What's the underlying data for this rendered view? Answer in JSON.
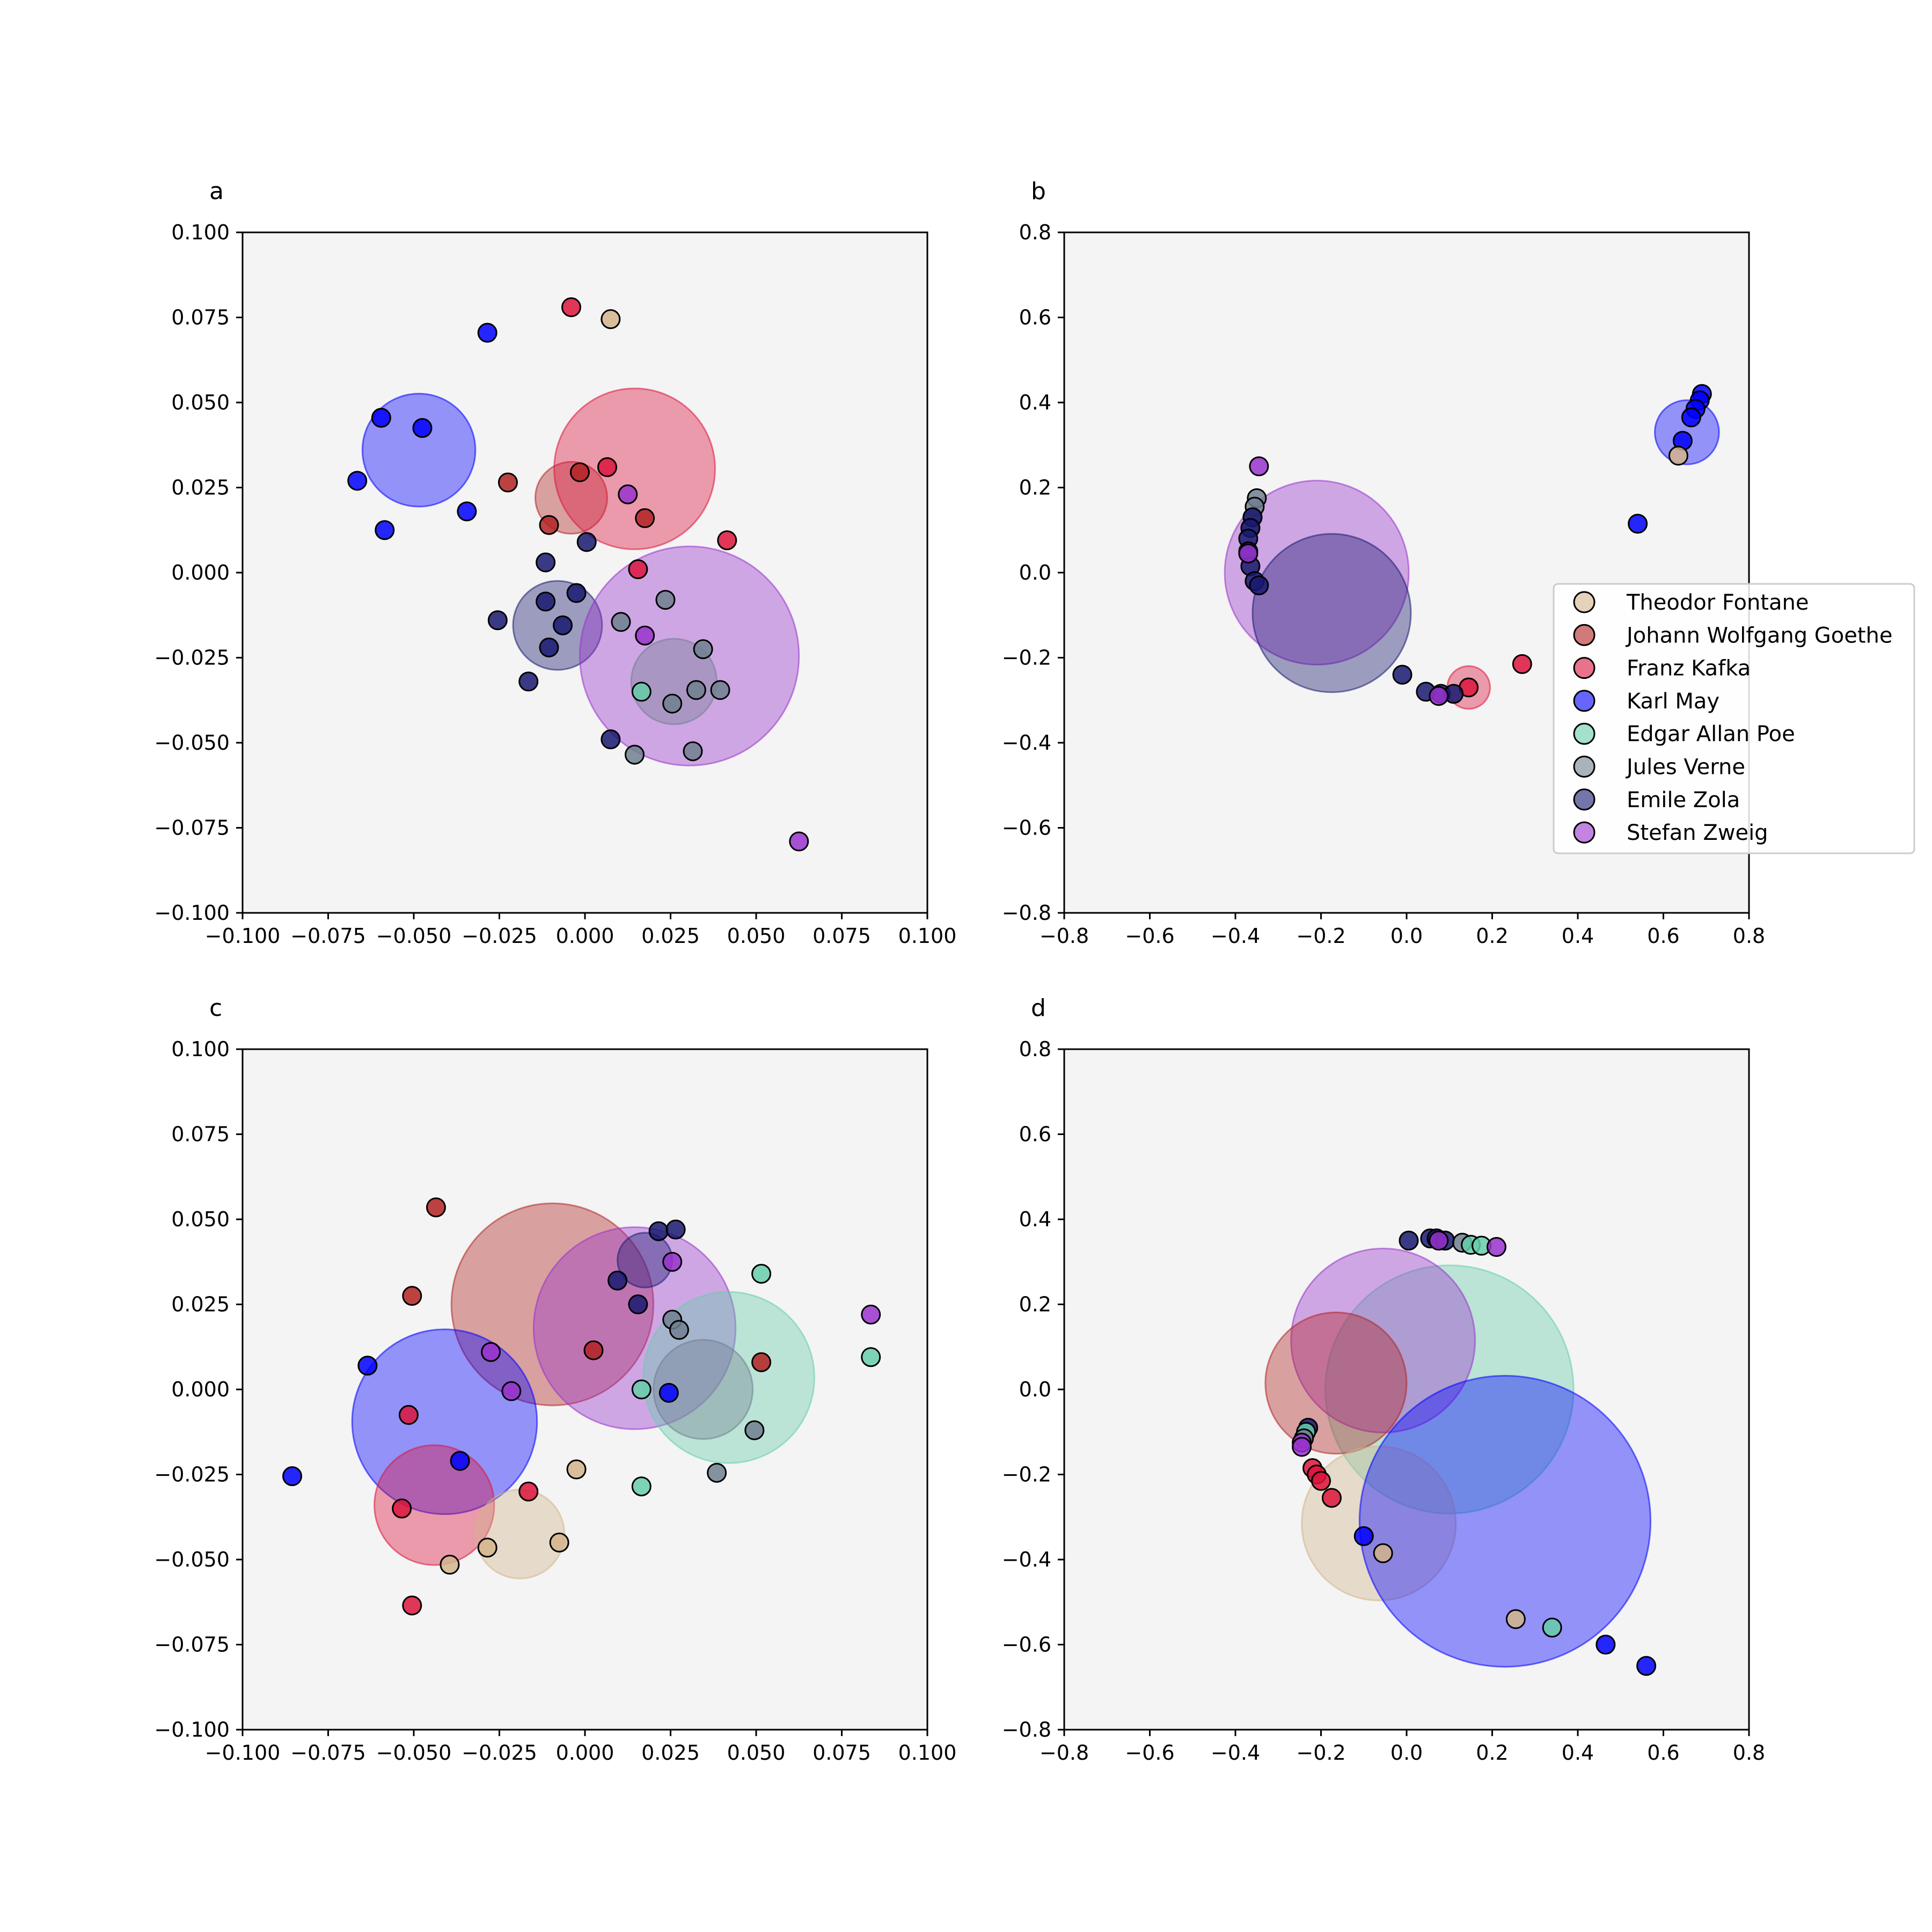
{
  "colors": {
    "Theodor Fontane": "#D2B48C",
    "Johann Wolfgang Goethe": "#B22222",
    "Franz Kafka": "#DC143C",
    "Karl May": "#0000FF",
    "Edgar Allan Poe": "#66CDAA",
    "Jules Verne": "#708090",
    "Emile Zola": "#191970",
    "Stefan Zweig": "#9932CC"
  },
  "legend": {
    "placement": "right of panel b",
    "entries": [
      "Theodor Fontane",
      "Johann Wolfgang Goethe",
      "Franz Kafka",
      "Karl May",
      "Edgar Allan Poe",
      "Jules Verne",
      "Emile Zola",
      "Stefan Zweig"
    ]
  },
  "chart_data": [
    {
      "panel": "a",
      "type": "scatter",
      "xlim": [
        -0.1,
        0.1
      ],
      "ylim": [
        -0.1,
        0.1
      ],
      "xticks": [
        "−0.100",
        "−0.075",
        "−0.050",
        "−0.025",
        "0.000",
        "0.025",
        "0.050",
        "0.075",
        "0.100"
      ],
      "yticks": [
        "−0.100",
        "−0.075",
        "−0.050",
        "−0.025",
        "0.000",
        "0.025",
        "0.050",
        "0.075",
        "0.100"
      ],
      "circles": [
        {
          "author": "Karl May",
          "x": -0.0485,
          "y": 0.036,
          "r": 0.0165
        },
        {
          "author": "Johann Wolfgang Goethe",
          "x": -0.004,
          "y": 0.022,
          "r": 0.0105
        },
        {
          "author": "Franz Kafka",
          "x": 0.0145,
          "y": 0.0305,
          "r": 0.0235
        },
        {
          "author": "Emile Zola",
          "x": -0.008,
          "y": -0.0155,
          "r": 0.013
        },
        {
          "author": "Stefan Zweig",
          "x": 0.0305,
          "y": -0.0245,
          "r": 0.032
        },
        {
          "author": "Jules Verne",
          "x": 0.026,
          "y": -0.032,
          "r": 0.0125
        }
      ],
      "points": [
        {
          "author": "Franz Kafka",
          "x": -0.004,
          "y": 0.078
        },
        {
          "author": "Theodor Fontane",
          "x": 0.0075,
          "y": 0.0745
        },
        {
          "author": "Karl May",
          "x": -0.0285,
          "y": 0.0705
        },
        {
          "author": "Karl May",
          "x": -0.0595,
          "y": 0.0455
        },
        {
          "author": "Karl May",
          "x": -0.0475,
          "y": 0.0425
        },
        {
          "author": "Karl May",
          "x": -0.0665,
          "y": 0.027
        },
        {
          "author": "Karl May",
          "x": -0.0345,
          "y": 0.018
        },
        {
          "author": "Karl May",
          "x": -0.0585,
          "y": 0.0125
        },
        {
          "author": "Johann Wolfgang Goethe",
          "x": -0.0225,
          "y": 0.0265
        },
        {
          "author": "Johann Wolfgang Goethe",
          "x": -0.0015,
          "y": 0.0295
        },
        {
          "author": "Johann Wolfgang Goethe",
          "x": -0.0105,
          "y": 0.014
        },
        {
          "author": "Johann Wolfgang Goethe",
          "x": 0.0175,
          "y": 0.016
        },
        {
          "author": "Franz Kafka",
          "x": 0.0065,
          "y": 0.031
        },
        {
          "author": "Franz Kafka",
          "x": 0.0415,
          "y": 0.0095
        },
        {
          "author": "Franz Kafka",
          "x": 0.0155,
          "y": 0.001
        },
        {
          "author": "Stefan Zweig",
          "x": 0.0125,
          "y": 0.023
        },
        {
          "author": "Emile Zola",
          "x": 0.0005,
          "y": 0.009
        },
        {
          "author": "Emile Zola",
          "x": -0.0115,
          "y": 0.003
        },
        {
          "author": "Emile Zola",
          "x": -0.0025,
          "y": -0.006
        },
        {
          "author": "Emile Zola",
          "x": -0.0115,
          "y": -0.0085
        },
        {
          "author": "Emile Zola",
          "x": -0.0255,
          "y": -0.014
        },
        {
          "author": "Emile Zola",
          "x": -0.0065,
          "y": -0.0155
        },
        {
          "author": "Emile Zola",
          "x": -0.0105,
          "y": -0.022
        },
        {
          "author": "Emile Zola",
          "x": -0.0165,
          "y": -0.032
        },
        {
          "author": "Emile Zola",
          "x": 0.0075,
          "y": -0.049
        },
        {
          "author": "Jules Verne",
          "x": 0.0105,
          "y": -0.0145
        },
        {
          "author": "Jules Verne",
          "x": 0.0235,
          "y": -0.008
        },
        {
          "author": "Jules Verne",
          "x": 0.0345,
          "y": -0.0225
        },
        {
          "author": "Jules Verne",
          "x": 0.0325,
          "y": -0.0345
        },
        {
          "author": "Jules Verne",
          "x": 0.0395,
          "y": -0.0345
        },
        {
          "author": "Jules Verne",
          "x": 0.0255,
          "y": -0.0385
        },
        {
          "author": "Jules Verne",
          "x": 0.0145,
          "y": -0.0535
        },
        {
          "author": "Jules Verne",
          "x": 0.0315,
          "y": -0.0525
        },
        {
          "author": "Stefan Zweig",
          "x": 0.0175,
          "y": -0.0185
        },
        {
          "author": "Edgar Allan Poe",
          "x": 0.0165,
          "y": -0.035
        },
        {
          "author": "Stefan Zweig",
          "x": 0.0625,
          "y": -0.079
        }
      ]
    },
    {
      "panel": "b",
      "type": "scatter",
      "xlim": [
        -0.8,
        0.8
      ],
      "ylim": [
        -0.8,
        0.8
      ],
      "xticks": [
        "−0.8",
        "−0.6",
        "−0.4",
        "−0.2",
        "0.0",
        "0.2",
        "0.4",
        "0.6",
        "0.8"
      ],
      "yticks": [
        "−0.8",
        "−0.6",
        "−0.4",
        "−0.2",
        "0.0",
        "0.2",
        "0.4",
        "0.6",
        "0.8"
      ],
      "circles": [
        {
          "author": "Karl May",
          "x": 0.655,
          "y": 0.33,
          "r": 0.075
        },
        {
          "author": "Stefan Zweig",
          "x": -0.21,
          "y": 0.0,
          "r": 0.215
        },
        {
          "author": "Emile Zola",
          "x": -0.175,
          "y": -0.095,
          "r": 0.185
        },
        {
          "author": "Franz Kafka",
          "x": 0.145,
          "y": -0.27,
          "r": 0.05
        }
      ],
      "points": [
        {
          "author": "Stefan Zweig",
          "x": -0.345,
          "y": 0.25
        },
        {
          "author": "Jules Verne",
          "x": -0.35,
          "y": 0.175
        },
        {
          "author": "Jules Verne",
          "x": -0.355,
          "y": 0.155
        },
        {
          "author": "Jules Verne",
          "x": -0.36,
          "y": 0.13
        },
        {
          "author": "Jules Verne",
          "x": -0.365,
          "y": 0.105
        },
        {
          "author": "Emile Zola",
          "x": -0.36,
          "y": 0.13
        },
        {
          "author": "Emile Zola",
          "x": -0.365,
          "y": 0.105
        },
        {
          "author": "Emile Zola",
          "x": -0.37,
          "y": 0.08
        },
        {
          "author": "Emile Zola",
          "x": -0.37,
          "y": 0.05
        },
        {
          "author": "Emile Zola",
          "x": -0.365,
          "y": 0.015
        },
        {
          "author": "Emile Zola",
          "x": -0.355,
          "y": -0.02
        },
        {
          "author": "Emile Zola",
          "x": -0.345,
          "y": -0.03
        },
        {
          "author": "Stefan Zweig",
          "x": -0.37,
          "y": 0.045
        },
        {
          "author": "Karl May",
          "x": 0.69,
          "y": 0.42
        },
        {
          "author": "Karl May",
          "x": 0.685,
          "y": 0.405
        },
        {
          "author": "Karl May",
          "x": 0.675,
          "y": 0.385
        },
        {
          "author": "Karl May",
          "x": 0.665,
          "y": 0.365
        },
        {
          "author": "Karl May",
          "x": 0.645,
          "y": 0.31
        },
        {
          "author": "Theodor Fontane",
          "x": 0.635,
          "y": 0.275
        },
        {
          "author": "Karl May",
          "x": 0.54,
          "y": 0.115
        },
        {
          "author": "Franz Kafka",
          "x": 0.27,
          "y": -0.215
        },
        {
          "author": "Franz Kafka",
          "x": 0.145,
          "y": -0.27
        },
        {
          "author": "Emile Zola",
          "x": -0.01,
          "y": -0.24
        },
        {
          "author": "Emile Zola",
          "x": 0.045,
          "y": -0.28
        },
        {
          "author": "Emile Zola",
          "x": 0.08,
          "y": -0.285
        },
        {
          "author": "Emile Zola",
          "x": 0.11,
          "y": -0.285
        },
        {
          "author": "Stefan Zweig",
          "x": 0.075,
          "y": -0.29
        }
      ]
    },
    {
      "panel": "c",
      "type": "scatter",
      "xlim": [
        -0.1,
        0.1
      ],
      "ylim": [
        -0.1,
        0.1
      ],
      "xticks": [
        "−0.100",
        "−0.075",
        "−0.050",
        "−0.025",
        "0.000",
        "0.025",
        "0.050",
        "0.075",
        "0.100"
      ],
      "yticks": [
        "−0.100",
        "−0.075",
        "−0.050",
        "−0.025",
        "0.000",
        "0.025",
        "0.050",
        "0.075",
        "0.100"
      ],
      "circles": [
        {
          "author": "Johann Wolfgang Goethe",
          "x": -0.0095,
          "y": 0.025,
          "r": 0.0295
        },
        {
          "author": "Stefan Zweig",
          "x": 0.0145,
          "y": 0.018,
          "r": 0.0295
        },
        {
          "author": "Edgar Allan Poe",
          "x": 0.042,
          "y": 0.0035,
          "r": 0.025
        },
        {
          "author": "Jules Verne",
          "x": 0.0345,
          "y": 0.0,
          "r": 0.0145
        },
        {
          "author": "Karl May",
          "x": -0.041,
          "y": -0.0095,
          "r": 0.027
        },
        {
          "author": "Franz Kafka",
          "x": -0.044,
          "y": -0.034,
          "r": 0.0175
        },
        {
          "author": "Theodor Fontane",
          "x": -0.019,
          "y": -0.0425,
          "r": 0.013
        },
        {
          "author": "Emile Zola",
          "x": 0.0175,
          "y": 0.038,
          "r": 0.008
        }
      ],
      "points": [
        {
          "author": "Johann Wolfgang Goethe",
          "x": -0.0435,
          "y": 0.0535
        },
        {
          "author": "Johann Wolfgang Goethe",
          "x": -0.0505,
          "y": 0.0275
        },
        {
          "author": "Johann Wolfgang Goethe",
          "x": 0.0025,
          "y": 0.0115
        },
        {
          "author": "Johann Wolfgang Goethe",
          "x": 0.0515,
          "y": 0.008
        },
        {
          "author": "Emile Zola",
          "x": 0.0215,
          "y": 0.0465
        },
        {
          "author": "Emile Zola",
          "x": 0.0265,
          "y": 0.047
        },
        {
          "author": "Emile Zola",
          "x": 0.0095,
          "y": 0.032
        },
        {
          "author": "Emile Zola",
          "x": 0.0155,
          "y": 0.025
        },
        {
          "author": "Stefan Zweig",
          "x": 0.0255,
          "y": 0.0375
        },
        {
          "author": "Stefan Zweig",
          "x": -0.0275,
          "y": 0.011
        },
        {
          "author": "Stefan Zweig",
          "x": -0.0215,
          "y": -0.0005
        },
        {
          "author": "Stefan Zweig",
          "x": 0.0835,
          "y": 0.022
        },
        {
          "author": "Jules Verne",
          "x": 0.0255,
          "y": 0.0205
        },
        {
          "author": "Jules Verne",
          "x": 0.0275,
          "y": 0.0175
        },
        {
          "author": "Jules Verne",
          "x": 0.0495,
          "y": -0.012
        },
        {
          "author": "Jules Verne",
          "x": 0.0385,
          "y": -0.0245
        },
        {
          "author": "Edgar Allan Poe",
          "x": 0.0515,
          "y": 0.034
        },
        {
          "author": "Edgar Allan Poe",
          "x": 0.0835,
          "y": 0.0095
        },
        {
          "author": "Edgar Allan Poe",
          "x": 0.0165,
          "y": 0.0
        },
        {
          "author": "Edgar Allan Poe",
          "x": 0.0165,
          "y": -0.0285
        },
        {
          "author": "Karl May",
          "x": 0.0245,
          "y": -0.001
        },
        {
          "author": "Karl May",
          "x": -0.0635,
          "y": 0.007
        },
        {
          "author": "Karl May",
          "x": -0.0365,
          "y": -0.021
        },
        {
          "author": "Karl May",
          "x": -0.0855,
          "y": -0.0255
        },
        {
          "author": "Franz Kafka",
          "x": -0.0515,
          "y": -0.0075
        },
        {
          "author": "Franz Kafka",
          "x": -0.0165,
          "y": -0.03
        },
        {
          "author": "Franz Kafka",
          "x": -0.0535,
          "y": -0.035
        },
        {
          "author": "Franz Kafka",
          "x": -0.0505,
          "y": -0.0635
        },
        {
          "author": "Theodor Fontane",
          "x": -0.0025,
          "y": -0.0235
        },
        {
          "author": "Theodor Fontane",
          "x": -0.0075,
          "y": -0.045
        },
        {
          "author": "Theodor Fontane",
          "x": -0.0285,
          "y": -0.0465
        },
        {
          "author": "Theodor Fontane",
          "x": -0.0395,
          "y": -0.0515
        }
      ]
    },
    {
      "panel": "d",
      "type": "scatter",
      "xlim": [
        -0.8,
        0.8
      ],
      "ylim": [
        -0.8,
        0.8
      ],
      "xticks": [
        "−0.8",
        "−0.6",
        "−0.4",
        "−0.2",
        "0.0",
        "0.2",
        "0.4",
        "0.6",
        "0.8"
      ],
      "yticks": [
        "−0.8",
        "−0.6",
        "−0.4",
        "−0.2",
        "0.0",
        "0.2",
        "0.4",
        "0.6",
        "0.8"
      ],
      "circles": [
        {
          "author": "Edgar Allan Poe",
          "x": 0.1,
          "y": 0.0,
          "r": 0.29
        },
        {
          "author": "Stefan Zweig",
          "x": -0.055,
          "y": 0.115,
          "r": 0.215
        },
        {
          "author": "Johann Wolfgang Goethe",
          "x": -0.165,
          "y": 0.015,
          "r": 0.165
        },
        {
          "author": "Theodor Fontane",
          "x": -0.065,
          "y": -0.315,
          "r": 0.18
        },
        {
          "author": "Karl May",
          "x": 0.23,
          "y": -0.31,
          "r": 0.34
        }
      ],
      "points": [
        {
          "author": "Emile Zola",
          "x": 0.005,
          "y": 0.35
        },
        {
          "author": "Emile Zola",
          "x": 0.055,
          "y": 0.355
        },
        {
          "author": "Emile Zola",
          "x": 0.07,
          "y": 0.355
        },
        {
          "author": "Emile Zola",
          "x": 0.09,
          "y": 0.35
        },
        {
          "author": "Stefan Zweig",
          "x": 0.075,
          "y": 0.35
        },
        {
          "author": "Jules Verne",
          "x": 0.13,
          "y": 0.345
        },
        {
          "author": "Edgar Allan Poe",
          "x": 0.15,
          "y": 0.34
        },
        {
          "author": "Edgar Allan Poe",
          "x": 0.175,
          "y": 0.338
        },
        {
          "author": "Stefan Zweig",
          "x": 0.21,
          "y": 0.335
        },
        {
          "author": "Emile Zola",
          "x": -0.23,
          "y": -0.09
        },
        {
          "author": "Edgar Allan Poe",
          "x": -0.235,
          "y": -0.1
        },
        {
          "author": "Jules Verne",
          "x": -0.24,
          "y": -0.115
        },
        {
          "author": "Stefan Zweig",
          "x": -0.245,
          "y": -0.125
        },
        {
          "author": "Stefan Zweig",
          "x": -0.245,
          "y": -0.135
        },
        {
          "author": "Franz Kafka",
          "x": -0.22,
          "y": -0.185
        },
        {
          "author": "Franz Kafka",
          "x": -0.21,
          "y": -0.2
        },
        {
          "author": "Franz Kafka",
          "x": -0.2,
          "y": -0.215
        },
        {
          "author": "Franz Kafka",
          "x": -0.175,
          "y": -0.255
        },
        {
          "author": "Karl May",
          "x": -0.1,
          "y": -0.345
        },
        {
          "author": "Theodor Fontane",
          "x": -0.055,
          "y": -0.385
        },
        {
          "author": "Theodor Fontane",
          "x": 0.255,
          "y": -0.54
        },
        {
          "author": "Edgar Allan Poe",
          "x": 0.34,
          "y": -0.56
        },
        {
          "author": "Karl May",
          "x": 0.465,
          "y": -0.6
        },
        {
          "author": "Karl May",
          "x": 0.56,
          "y": -0.65
        }
      ]
    }
  ]
}
